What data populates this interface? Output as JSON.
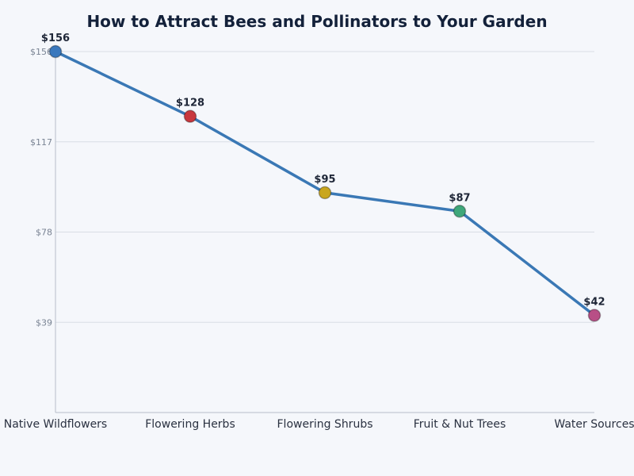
{
  "chart_data": {
    "type": "line",
    "title": "How to Attract Bees and Pollinators to Your Garden",
    "xlabel": "",
    "ylabel": "",
    "categories": [
      "Native Wildflowers",
      "Flowering Herbs",
      "Flowering Shrubs",
      "Fruit & Nut Trees",
      "Water Sources"
    ],
    "series": [
      {
        "values": [
          156,
          128,
          95,
          87,
          42
        ],
        "data_labels": [
          "$156",
          "$128",
          "$95",
          "$87",
          "$42"
        ],
        "line_color": "#3a78b5",
        "marker_colors": [
          "#3a78bd",
          "#c8383e",
          "#c9a61e",
          "#3fa77a",
          "#b84f86"
        ]
      }
    ],
    "ylim": [
      0,
      156
    ],
    "yticks": [
      39,
      78,
      117,
      156
    ],
    "ytick_labels": [
      "$39",
      "$78",
      "$117",
      "$156"
    ],
    "grid": true,
    "legend": "none",
    "colors": {
      "background": "#f5f7fb",
      "grid": "#d9dde5",
      "axis": "#b8bec8"
    }
  }
}
